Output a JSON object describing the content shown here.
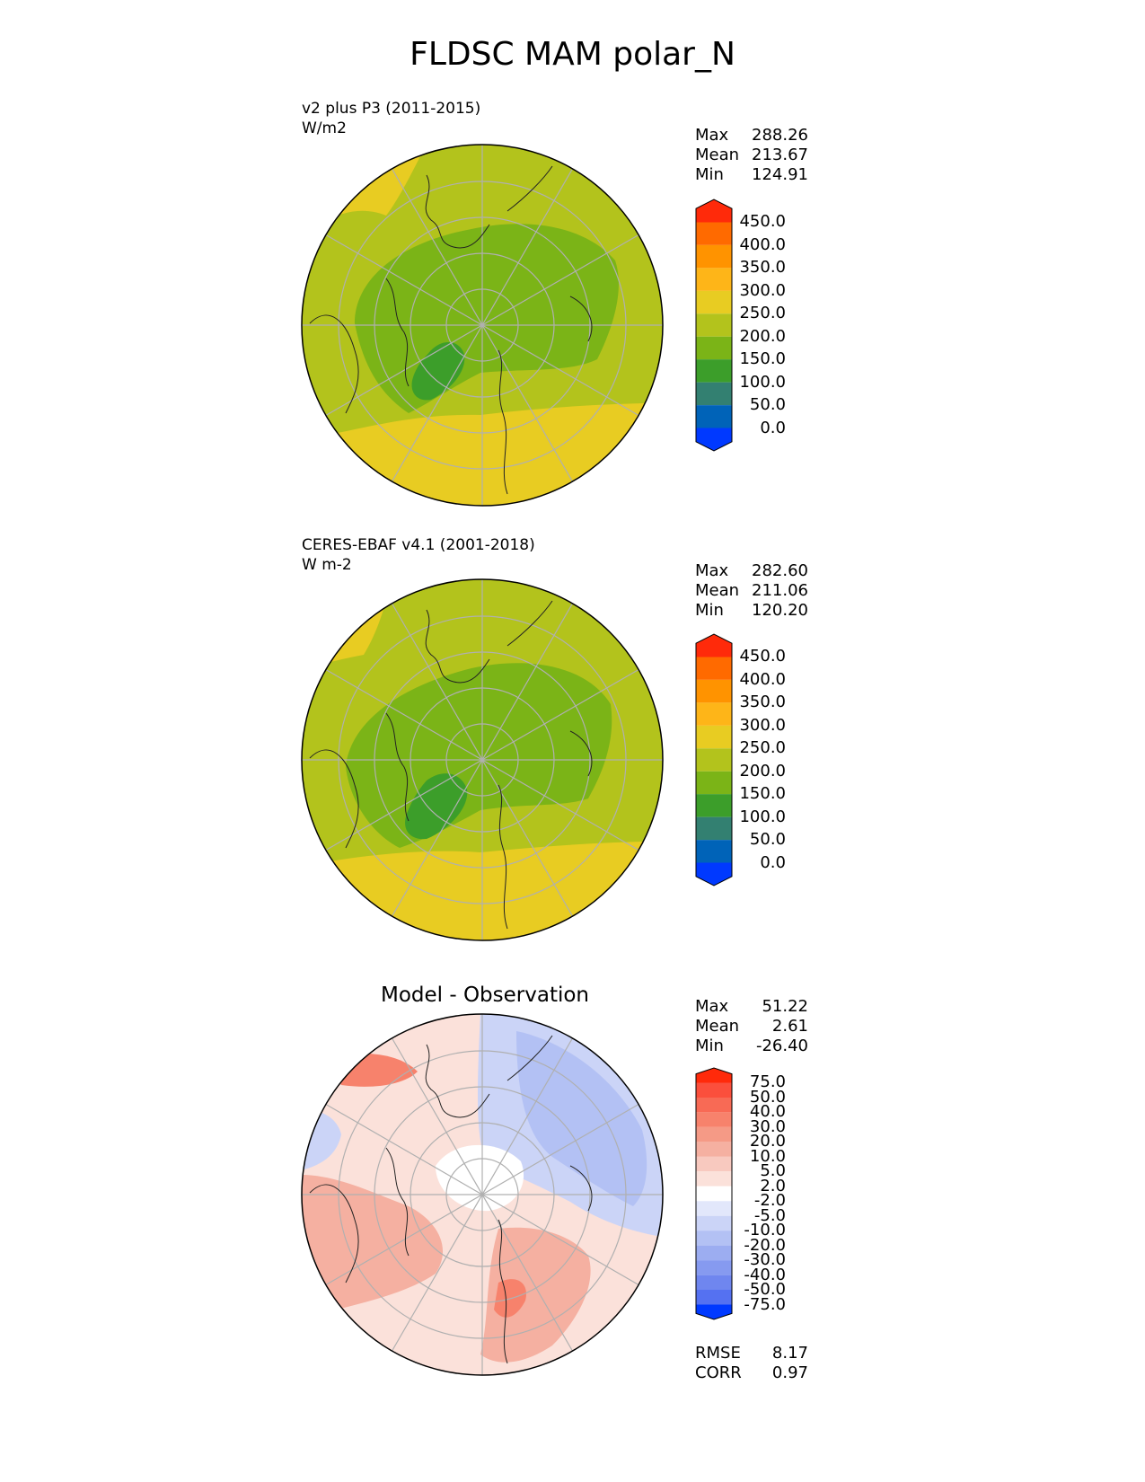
{
  "title": "FLDSC MAM polar_N",
  "panels": [
    {
      "label_line1": "v2 plus P3 (2011-2015)",
      "label_line2": "W/m2",
      "stats": {
        "max_label": "Max",
        "max": "288.26",
        "mean_label": "Mean",
        "mean": "213.67",
        "min_label": "Min",
        "min": "124.91"
      }
    },
    {
      "label_line1": "CERES-EBAF v4.1 (2001-2018)",
      "label_line2": "W m-2",
      "stats": {
        "max_label": "Max",
        "max": "282.60",
        "mean_label": "Mean",
        "mean": "211.06",
        "min_label": "Min",
        "min": "120.20"
      }
    },
    {
      "title": "Model - Observation",
      "stats": {
        "max_label": "Max",
        "max": "51.22",
        "mean_label": "Mean",
        "mean": "2.61",
        "min_label": "Min",
        "min": "-26.40"
      },
      "rmse_label": "RMSE",
      "rmse": "8.17",
      "corr_label": "CORR",
      "corr": "0.97"
    }
  ],
  "colorbar_abs": {
    "labels": [
      "450.0",
      "400.0",
      "350.0",
      "300.0",
      "250.0",
      "200.0",
      "150.0",
      "100.0",
      "50.0",
      "0.0"
    ],
    "colors": [
      "#ff2a0a",
      "#ff6a00",
      "#ff9300",
      "#feb518",
      "#e8cc22",
      "#b3c31c",
      "#7bb417",
      "#3c9e2a",
      "#338071",
      "#0063b8",
      "#0039ff"
    ]
  },
  "colorbar_diff": {
    "labels": [
      "75.0",
      "50.0",
      "40.0",
      "30.0",
      "20.0",
      "10.0",
      "5.0",
      "2.0",
      "-2.0",
      "-5.0",
      "-10.0",
      "-20.0",
      "-30.0",
      "-40.0",
      "-50.0",
      "-75.0"
    ],
    "colors": [
      "#ff2a0a",
      "#fb4f3c",
      "#f86a55",
      "#f7826c",
      "#f59a86",
      "#f5b0a1",
      "#f8c9bf",
      "#fbe1da",
      "#ffffff",
      "#e2e7fb",
      "#cbd4f7",
      "#b3c1f4",
      "#9cadf1",
      "#869af0",
      "#6f86ef",
      "#5571f1",
      "#0039ff"
    ]
  },
  "map_colors": {
    "c100": "#3c9e2a",
    "c150": "#7bb417",
    "c200": "#b3c31c",
    "c250": "#e8cc22",
    "red_light": "#fbe1da",
    "red_mid": "#f5b0a1",
    "red_strong": "#f7826c",
    "blue_light": "#cbd4f7",
    "blue_mid": "#b3c1f4",
    "grid": "#b0b0b0",
    "coast": "#222222"
  }
}
